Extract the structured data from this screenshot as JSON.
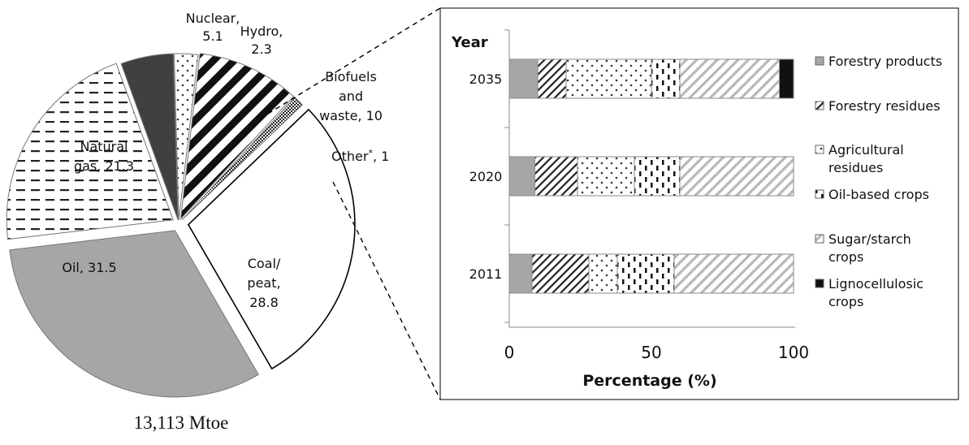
{
  "chart_data": [
    {
      "type": "pie",
      "caption": "13,113 Mtoe",
      "slices": [
        {
          "name": "Nuclear",
          "label": "Nuclear,",
          "value_label": "5.1",
          "value": 5.1,
          "pattern": "solid-dark"
        },
        {
          "name": "Hydro",
          "label": "Hydro,",
          "value_label": "2.3",
          "value": 2.3,
          "pattern": "dots"
        },
        {
          "name": "Biofuels and waste",
          "label_lines": [
            "Biofuels",
            "and",
            "waste, 10"
          ],
          "value": 10,
          "pattern": "wide-diagonal"
        },
        {
          "name": "Other*",
          "label": "Other",
          "label_sup": "*",
          "label_tail": ", 1",
          "value": 1,
          "pattern": "checker"
        },
        {
          "name": "Coal/peat",
          "label_lines": [
            "Coal/",
            "peat,",
            "28.8"
          ],
          "value": 28.8,
          "pattern": "white"
        },
        {
          "name": "Oil",
          "label": "Oil, 31.5",
          "value": 31.5,
          "pattern": "solid-gray"
        },
        {
          "name": "Natural gas",
          "label_lines": [
            "Natural",
            "gas, 21.3"
          ],
          "value": 21.3,
          "pattern": "dashes"
        }
      ]
    },
    {
      "type": "bar",
      "orientation": "horizontal",
      "stacked": true,
      "y_title": "Year",
      "categories": [
        "2035",
        "2020",
        "2011"
      ],
      "xlabel": "Percentage (%)",
      "xlim": [
        0,
        100
      ],
      "xticks": [
        "0",
        "50",
        "100"
      ],
      "series": [
        {
          "name": "Forestry products",
          "pattern": "solid-gray",
          "values": [
            10,
            9,
            8
          ]
        },
        {
          "name": "Forestry residues",
          "pattern": "diagonal",
          "values": [
            10,
            15,
            20
          ]
        },
        {
          "name": "Agricultural residues",
          "pattern": "dots",
          "values": [
            30,
            20,
            10
          ]
        },
        {
          "name": "Oil-based crops",
          "pattern": "vertical-dashes",
          "values": [
            10,
            16,
            20
          ]
        },
        {
          "name": "Sugar/starch crops",
          "pattern": "light-diagonal",
          "values": [
            35,
            40,
            42
          ]
        },
        {
          "name": "Lignocellulosic crops",
          "pattern": "solid-black",
          "values": [
            5,
            0,
            0
          ]
        }
      ],
      "legend_position": "right",
      "legend_lines": [
        [
          "Forestry products"
        ],
        [
          "Forestry residues"
        ],
        [
          "Agricultural",
          "residues"
        ],
        [
          "Oil-based crops"
        ],
        [
          "Sugar/starch",
          "crops"
        ],
        [
          "Lignocellulosic",
          "crops"
        ]
      ]
    }
  ]
}
